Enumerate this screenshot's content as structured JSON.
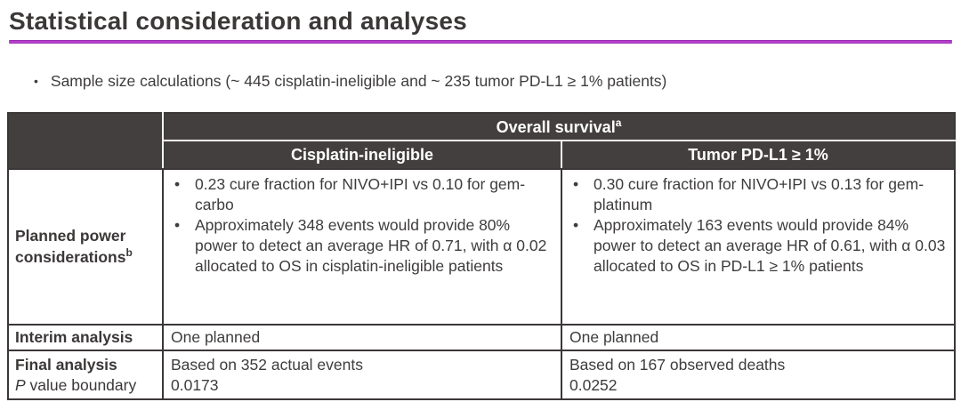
{
  "page": {
    "title": "Statistical consideration and analyses",
    "bullet_marker": "•",
    "bullet": "Sample size calculations (~ 445 cisplatin-ineligible and ~ 235 tumor PD-L1 ≥ 1% patients)"
  },
  "colors": {
    "accent_line": "#a22bbd",
    "header_bg": "#443f3f",
    "header_text": "#ffffff",
    "body_text": "#3f3c3c",
    "border": "#3b3737"
  },
  "table": {
    "header": {
      "overall_survival": "Overall survival",
      "overall_survival_sup": "a",
      "col_cisplatin": "Cisplatin-ineligible",
      "col_pdl1": "Tumor PD-L1 ≥ 1%"
    },
    "rows": {
      "planned_power": {
        "label": "Planned power considerations",
        "label_sup": "b",
        "cisplatin_bullets": [
          "0.23 cure fraction for NIVO+IPI vs 0.10 for gem-carbo",
          "Approximately 348 events would provide 80% power to detect an average HR of 0.71, with α 0.02 allocated to OS in cisplatin-ineligible patients"
        ],
        "pdl1_bullets": [
          "0.30 cure fraction for NIVO+IPI vs 0.13 for gem-platinum",
          "Approximately 163 events would provide 84% power to detect an average HR of 0.61, with α 0.03 allocated to OS in PD-L1 ≥ 1% patients"
        ]
      },
      "interim": {
        "label": "Interim analysis",
        "cisplatin": "One planned",
        "pdl1": "One planned"
      },
      "final": {
        "label_line1": "Final analysis",
        "label_p_italic": "P",
        "label_line2_rest": " value boundary",
        "cisplatin_line1": "Based on 352 actual events",
        "cisplatin_line2": "0.0173",
        "pdl1_line1": "Based on 167 observed deaths",
        "pdl1_line2": "0.0252"
      }
    }
  }
}
